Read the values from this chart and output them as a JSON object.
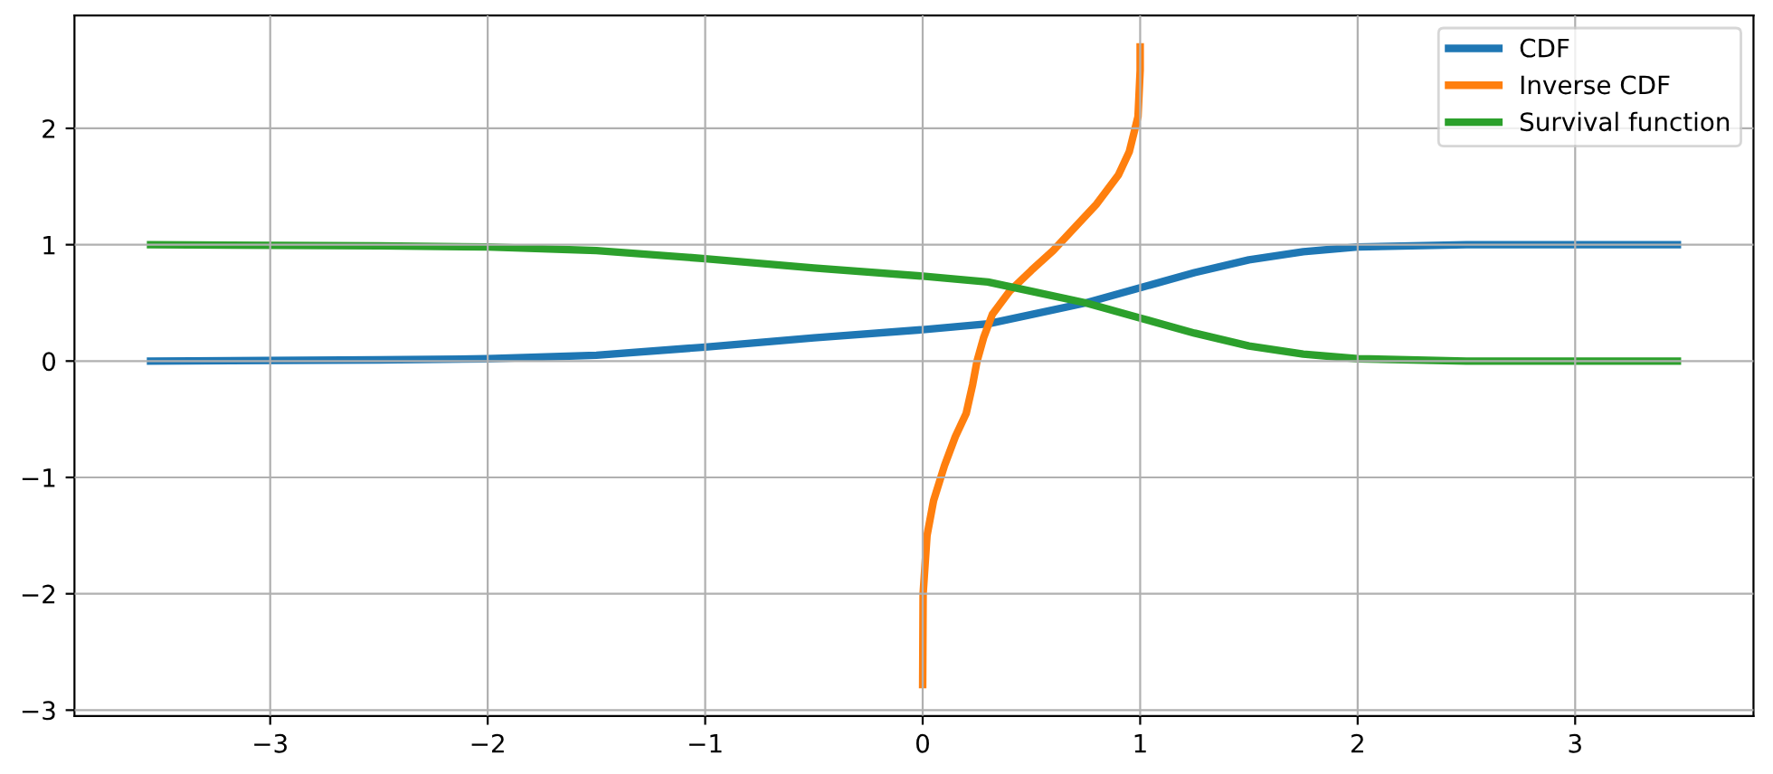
{
  "chart_data": {
    "type": "line",
    "xlim": [
      -3.9,
      3.82
    ],
    "ylim": [
      -3.05,
      2.97
    ],
    "xticks": [
      {
        "value": -3,
        "label": "−3"
      },
      {
        "value": -2,
        "label": "−2"
      },
      {
        "value": -1,
        "label": "−1"
      },
      0,
      1,
      2,
      3
    ],
    "yticks": [
      {
        "value": -3,
        "label": "−3"
      },
      {
        "value": -2,
        "label": "−2"
      },
      {
        "value": -1,
        "label": "−1"
      },
      0,
      1,
      2
    ],
    "grid": true,
    "legend": "top right",
    "series": [
      {
        "name": "CDF",
        "color": "#1f77b4",
        "x": [
          -3.55,
          -2.5,
          -2,
          -1.5,
          -1,
          -0.5,
          0,
          0.3,
          0.5,
          0.75,
          1,
          1.25,
          1.5,
          1.75,
          2,
          2.5,
          3.47
        ],
        "values": [
          0,
          0.01,
          0.02,
          0.05,
          0.12,
          0.2,
          0.27,
          0.32,
          0.4,
          0.5,
          0.63,
          0.76,
          0.87,
          0.94,
          0.98,
          1.0,
          1.0
        ]
      },
      {
        "name": "Inverse CDF",
        "color": "#ff7f0e",
        "x": [
          0,
          0.002,
          0.02,
          0.05,
          0.1,
          0.15,
          0.2,
          0.23,
          0.25,
          0.28,
          0.32,
          0.4,
          0.5,
          0.6,
          0.7,
          0.8,
          0.9,
          0.95,
          0.99,
          1.0,
          1.0
        ],
        "values": [
          -2.78,
          -2,
          -1.5,
          -1.2,
          -0.9,
          -0.65,
          -0.45,
          -0.2,
          0,
          0.2,
          0.4,
          0.6,
          0.78,
          0.95,
          1.15,
          1.35,
          1.6,
          1.8,
          2.1,
          2.5,
          2.7
        ]
      },
      {
        "name": "Survival function",
        "color": "#2ca02c",
        "x": [
          -3.55,
          -2.5,
          -2,
          -1.5,
          -1,
          -0.5,
          0,
          0.3,
          0.5,
          0.75,
          1,
          1.25,
          1.5,
          1.75,
          2,
          2.5,
          3.47
        ],
        "values": [
          1,
          0.99,
          0.98,
          0.95,
          0.88,
          0.8,
          0.73,
          0.68,
          0.6,
          0.5,
          0.37,
          0.24,
          0.13,
          0.06,
          0.02,
          0,
          0
        ]
      }
    ]
  }
}
